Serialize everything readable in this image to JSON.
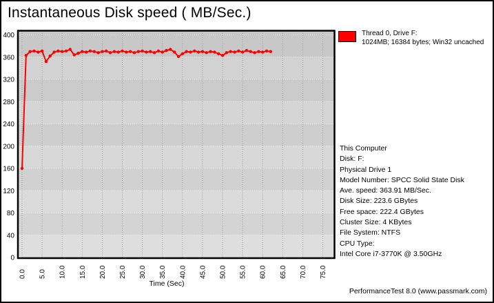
{
  "title": "Instantaneous Disk speed ( MB/Sec.)",
  "legend": {
    "swatch_color": "#ff0000",
    "line1": "Thread 0, Drive F:",
    "line2": "1024MB; 16384 bytes; Win32 uncached"
  },
  "info_lines": [
    "This Computer",
    "Disk: F:",
    "Physical Drive 1",
    "Model Number: SPCC Solid State Disk",
    "Ave. speed: 363.91 MB/Sec.",
    "Disk Size: 223.6 GBytes",
    "Free space: 222.4 GBytes",
    "Cluster Size: 4 KBytes",
    "File System: NTFS",
    "CPU Type:",
    "Intel Core i7-3770K @ 3.50GHz"
  ],
  "watermark": "PerformanceTest 8.0 (www.passmark.com)",
  "chart_data": {
    "type": "line",
    "title": "Instantaneous Disk speed ( MB/Sec.)",
    "xlabel": "Time (Sec)",
    "ylabel": "",
    "xlim": [
      0,
      77.8
    ],
    "ylim": [
      0,
      400
    ],
    "xticks": [
      0,
      5,
      10,
      15,
      20,
      25,
      30,
      35,
      40,
      45,
      50,
      55,
      60,
      65,
      70,
      75
    ],
    "xtick_labels": [
      "0.0",
      "5.0",
      "10.0",
      "15.0",
      "20.0",
      "25.0",
      "30.0",
      "35.0",
      "40.0",
      "45.0",
      "50.0",
      "55.0",
      "60.0",
      "65.0",
      "70.0",
      "75.0"
    ],
    "yticks": [
      0,
      40,
      80,
      120,
      160,
      200,
      240,
      280,
      320,
      360,
      400
    ],
    "ytick_labels": [
      "0",
      "40",
      "80",
      "120",
      "160",
      "200",
      "240",
      "280",
      "320",
      "360",
      "400"
    ],
    "grid": "dotted major gridlines, horizontal light / vertical gray",
    "plot_background": "alternating gray horizontal bands",
    "legend_position": "outside top-right",
    "series": [
      {
        "name": "Thread 0, Drive F: 1024MB; 16384 bytes; Win32 uncached",
        "color": "#ff0000",
        "points": [
          [
            0,
            160
          ],
          [
            1,
            363
          ],
          [
            2,
            370
          ],
          [
            3,
            371
          ],
          [
            4,
            369
          ],
          [
            5,
            371
          ],
          [
            6,
            352
          ],
          [
            7,
            362
          ],
          [
            8,
            369
          ],
          [
            9,
            371
          ],
          [
            10,
            370
          ],
          [
            11,
            371
          ],
          [
            12,
            374
          ],
          [
            13,
            364
          ],
          [
            14,
            367
          ],
          [
            15,
            370
          ],
          [
            16,
            369
          ],
          [
            17,
            371
          ],
          [
            18,
            370
          ],
          [
            19,
            368
          ],
          [
            20,
            370
          ],
          [
            21,
            371
          ],
          [
            22,
            368
          ],
          [
            23,
            370
          ],
          [
            24,
            369
          ],
          [
            25,
            371
          ],
          [
            26,
            369
          ],
          [
            27,
            370
          ],
          [
            28,
            368
          ],
          [
            29,
            370
          ],
          [
            30,
            371
          ],
          [
            31,
            369
          ],
          [
            32,
            370
          ],
          [
            33,
            368
          ],
          [
            34,
            371
          ],
          [
            35,
            369
          ],
          [
            36,
            372
          ],
          [
            37,
            374
          ],
          [
            38,
            369
          ],
          [
            39,
            361
          ],
          [
            40,
            366
          ],
          [
            41,
            370
          ],
          [
            42,
            369
          ],
          [
            43,
            371
          ],
          [
            44,
            369
          ],
          [
            45,
            370
          ],
          [
            46,
            368
          ],
          [
            47,
            370
          ],
          [
            48,
            369
          ],
          [
            49,
            366
          ],
          [
            50,
            363
          ],
          [
            51,
            368
          ],
          [
            52,
            370
          ],
          [
            53,
            369
          ],
          [
            54,
            371
          ],
          [
            55,
            369
          ],
          [
            56,
            372
          ],
          [
            57,
            370
          ],
          [
            58,
            368
          ],
          [
            59,
            370
          ],
          [
            60,
            369
          ],
          [
            61,
            371
          ],
          [
            62,
            370
          ]
        ]
      }
    ]
  }
}
